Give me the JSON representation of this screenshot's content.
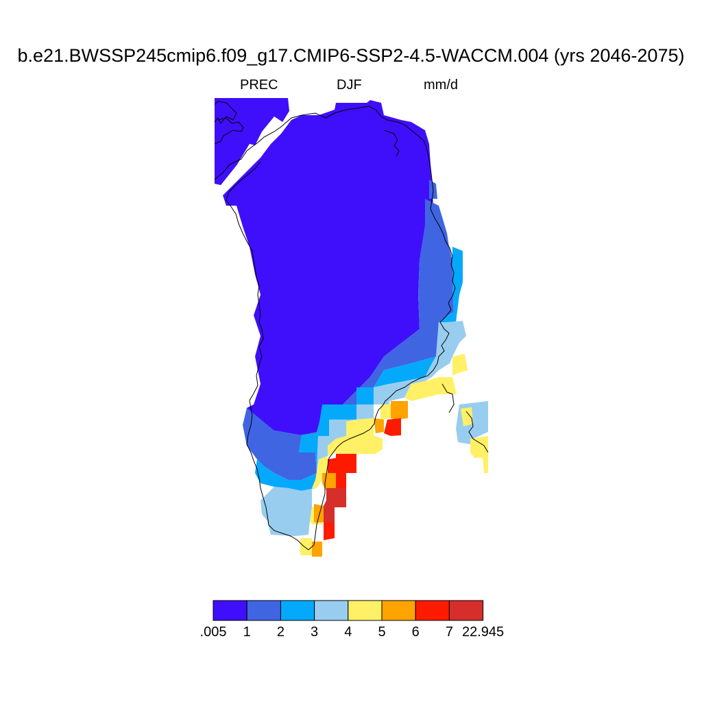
{
  "title": "b.e21.BWSSP245cmip6.f09_g17.CMIP6-SSP2-4.5-WACCM.004 (yrs 2046-2075)",
  "variable": "PREC",
  "season": "DJF",
  "units": "mm/d",
  "colorbar": {
    "colors": [
      "#3f0ffb",
      "#4065e3",
      "#04a9fc",
      "#99cdef",
      "#fff066",
      "#fea300",
      "#fd1b00",
      "#d62e2b"
    ],
    "labels": [
      ".005",
      "1",
      "2",
      "3",
      "4",
      "5",
      "6",
      "7",
      "22.945"
    ]
  }
}
